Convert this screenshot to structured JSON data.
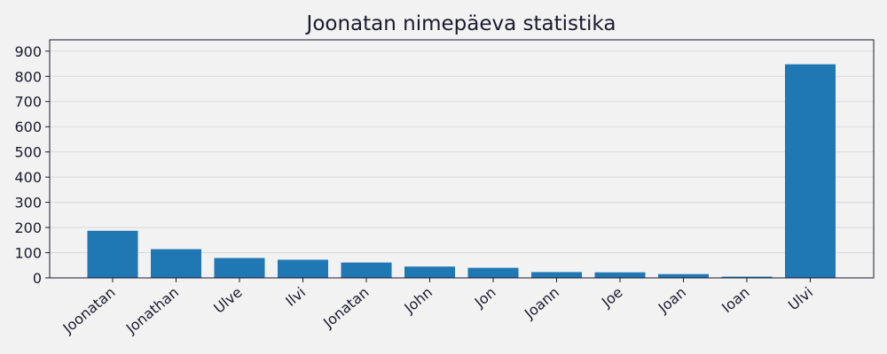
{
  "chart_data": {
    "type": "bar",
    "title": "Joonatan nimepäeva statistika",
    "xlabel": "",
    "ylabel": "",
    "categories": [
      "Joonatan",
      "Jonathan",
      "Ulve",
      "Ilvi",
      "Jonatan",
      "John",
      "Jon",
      "Joann",
      "Joe",
      "Joan",
      "Ioan",
      "Ulvi"
    ],
    "values": [
      187,
      114,
      79,
      72,
      61,
      45,
      40,
      23,
      22,
      15,
      5,
      848
    ],
    "ylim": [
      0,
      945
    ],
    "yticks": [
      0,
      100,
      200,
      300,
      400,
      500,
      600,
      700,
      800,
      900
    ],
    "bar_color": "#1f77b4",
    "grid": "horizontal"
  }
}
